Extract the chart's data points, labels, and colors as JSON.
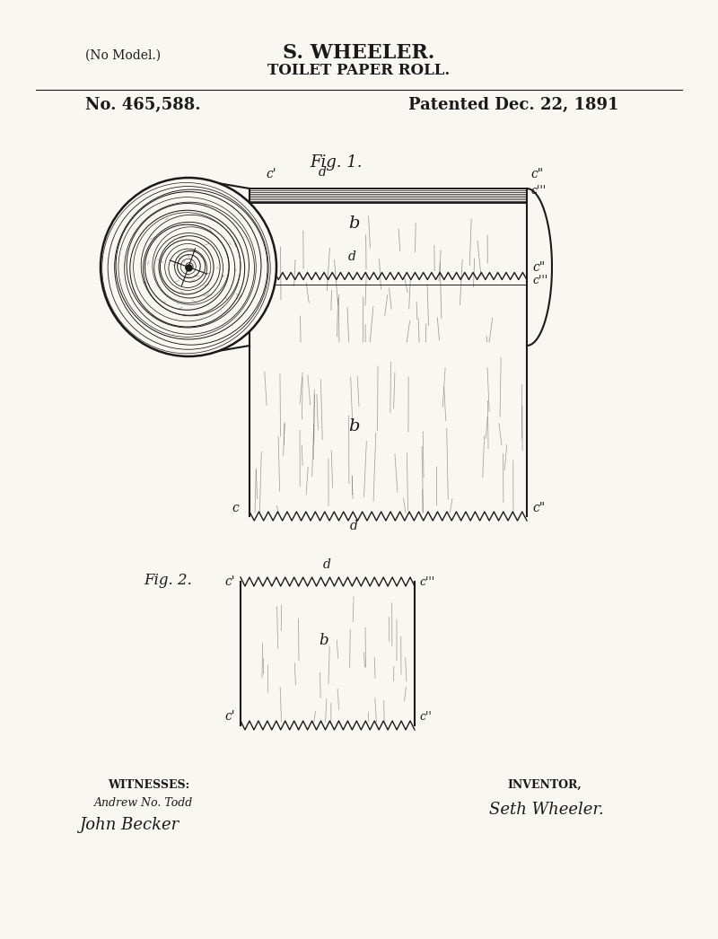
{
  "bg_color": "#f8f7f2",
  "ink_color": "#1a1a1a",
  "title_line1": "S. WHEELER.",
  "title_line2": "TOILET PAPER ROLL.",
  "patent_no": "No. 465,588.",
  "patent_date": "Patented Dec. 22, 1891",
  "no_model": "(No Model.)",
  "fig1_label": "Fig. 1.",
  "fig2_label": "Fig. 2.",
  "witnesses_label": "WITNESSES:",
  "witnesses_sig1": "Andrew No. Todd",
  "witnesses_sig2": "John Becker",
  "inventor_label": "INVENTOR,",
  "inventor_sig": "Seth Wheeler."
}
